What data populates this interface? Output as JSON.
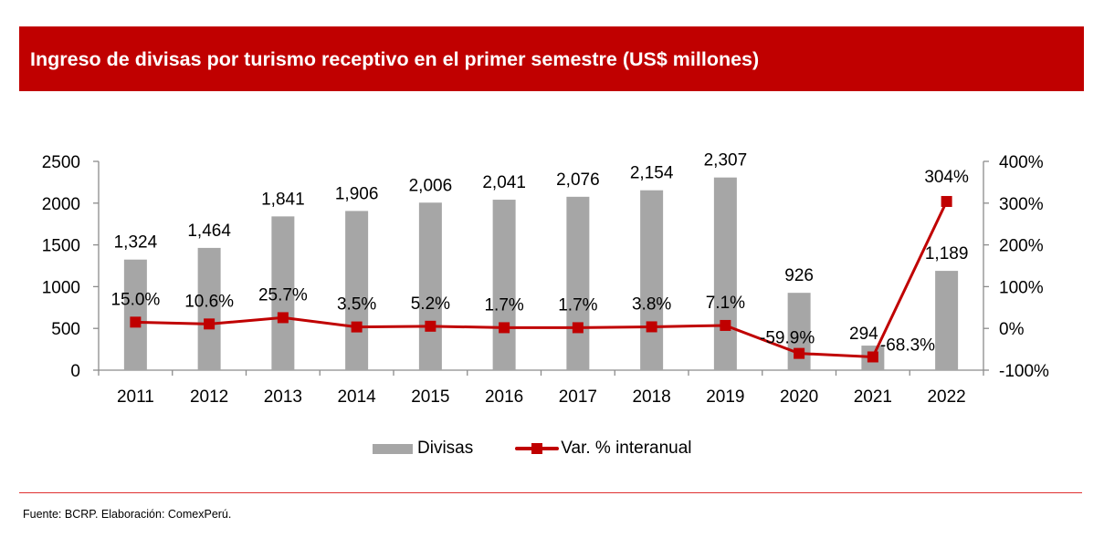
{
  "header": {
    "title": "Ingreso de divisas por turismo receptivo en el primer semestre (US$ millones)"
  },
  "colors": {
    "header_bg": "#c00000",
    "bar": "#a6a6a6",
    "line": "#c00000",
    "divider": "#e03030"
  },
  "chart_data": {
    "type": "bar+line",
    "title": "Ingreso de divisas por turismo receptivo en el primer semestre (US$ millones)",
    "categories": [
      "2011",
      "2012",
      "2013",
      "2014",
      "2015",
      "2016",
      "2017",
      "2018",
      "2019",
      "2020",
      "2021",
      "2022"
    ],
    "series": [
      {
        "name": "Divisas",
        "type": "bar",
        "axis": "left",
        "values": [
          1324,
          1464,
          1841,
          1906,
          2006,
          2041,
          2076,
          2154,
          2307,
          926,
          294,
          1189
        ],
        "labels": [
          "1,324",
          "1,464",
          "1,841",
          "1,906",
          "2,006",
          "2,041",
          "2,076",
          "2,154",
          "2,307",
          "926",
          "294",
          "1,189"
        ]
      },
      {
        "name": "Var. % interanual",
        "type": "line",
        "axis": "right",
        "values": [
          15.0,
          10.6,
          25.7,
          3.5,
          5.2,
          1.7,
          1.7,
          3.8,
          7.1,
          -59.9,
          -68.3,
          304
        ],
        "labels": [
          "15.0%",
          "10.6%",
          "25.7%",
          "3.5%",
          "5.2%",
          "1.7%",
          "1.7%",
          "3.8%",
          "7.1%",
          "-59.9%",
          "-68.3%",
          "304%"
        ]
      }
    ],
    "y_left": {
      "range": [
        0,
        2500
      ],
      "ticks": [
        0,
        500,
        1000,
        1500,
        2000,
        2500
      ],
      "tick_labels": [
        "0",
        "500",
        "1000",
        "1500",
        "2000",
        "2500"
      ]
    },
    "y_right": {
      "range": [
        -100,
        400
      ],
      "ticks": [
        -100,
        0,
        100,
        200,
        300,
        400
      ],
      "tick_labels": [
        "-100%",
        "0%",
        "100%",
        "200%",
        "300%",
        "400%"
      ]
    },
    "xlabel": "",
    "ylabel": "",
    "grid": false,
    "legend": {
      "position": "bottom",
      "entries": [
        "Divisas",
        "Var. % interanual"
      ]
    }
  },
  "footer": {
    "source": "Fuente: BCRP. Elaboración: ComexPerú."
  }
}
